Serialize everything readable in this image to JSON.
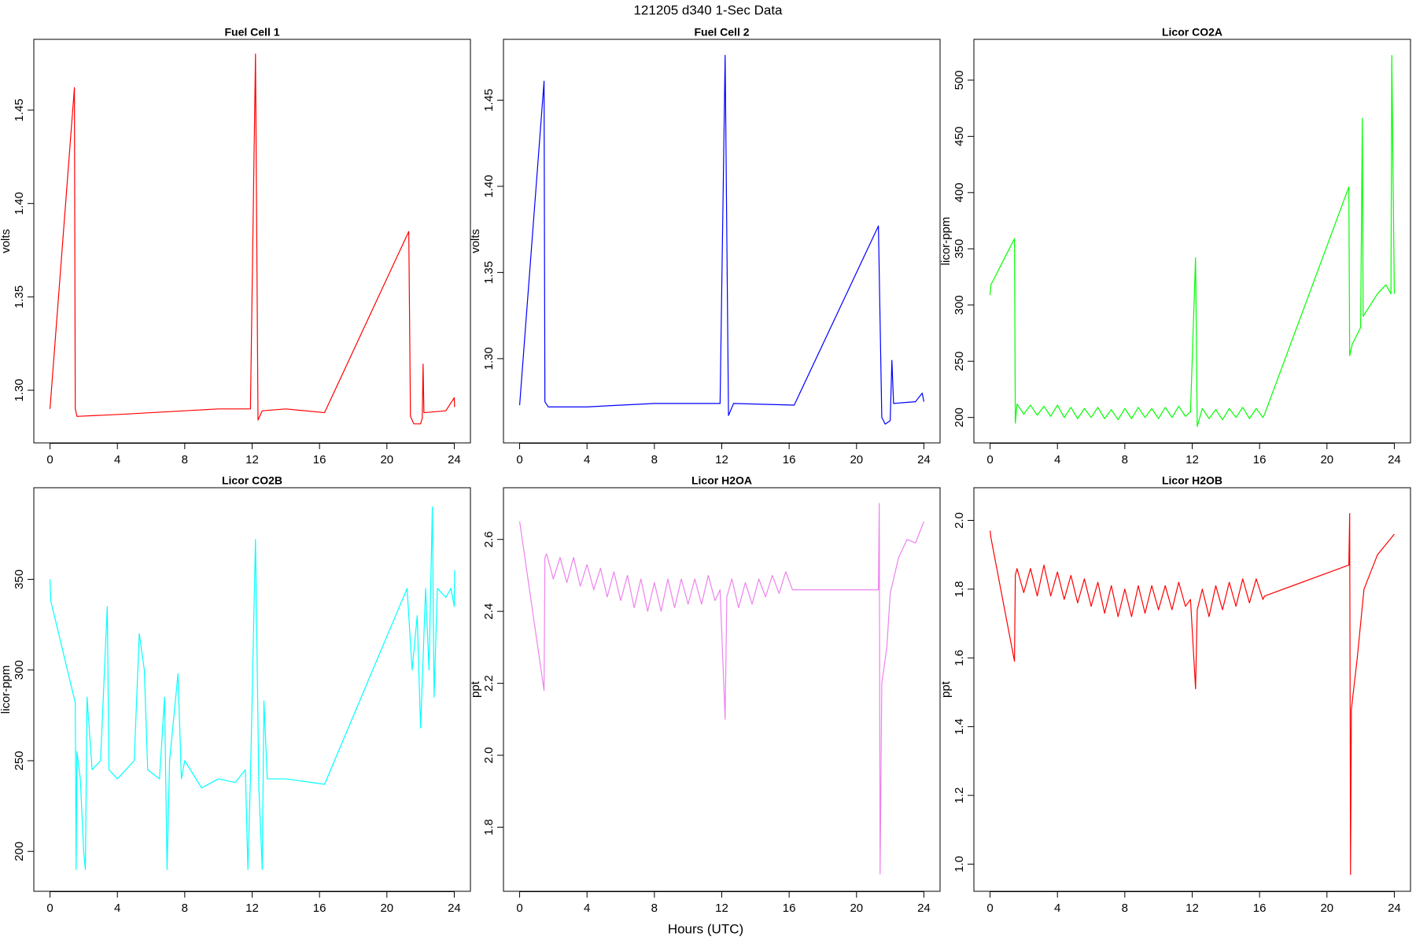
{
  "title": "121205   d340   1-Sec Data",
  "x_label": "Hours (UTC)",
  "chart_data": [
    {
      "type": "line",
      "title": "Fuel Cell 1",
      "ylabel": "volts",
      "color": "#ff0000",
      "x": [
        0,
        1.45,
        1.5,
        1.6,
        4,
        8,
        10,
        11.9,
        12.2,
        12.35,
        12.6,
        14,
        16.3,
        21.3,
        21.4,
        21.6,
        22,
        22.1,
        22.15,
        22.2,
        23.5,
        24,
        24.02
      ],
      "values": [
        1.29,
        1.462,
        1.29,
        1.286,
        1.287,
        1.289,
        1.29,
        1.29,
        1.48,
        1.284,
        1.289,
        1.29,
        1.288,
        1.385,
        1.286,
        1.282,
        1.282,
        1.285,
        1.314,
        1.288,
        1.289,
        1.296,
        1.291
      ],
      "xlim": [
        -0.96,
        24.96
      ],
      "xticks": [
        0,
        4,
        8,
        12,
        16,
        20,
        24
      ],
      "ylim": [
        1.2718,
        1.4879
      ],
      "yticks": [
        {
          "value": 1.3,
          "label": "1.30"
        },
        1.35,
        {
          "value": 1.4,
          "label": "1.40"
        },
        1.45
      ]
    },
    {
      "type": "line",
      "title": "Fuel Cell 2",
      "ylabel": "volts",
      "color": "#0000ff",
      "x": [
        0,
        1.45,
        1.5,
        1.7,
        4,
        8,
        11.9,
        12.2,
        12.4,
        12.7,
        16.3,
        21.3,
        21.5,
        21.7,
        22,
        22.1,
        22.2,
        23.5,
        23.9,
        24
      ],
      "values": [
        1.273,
        1.461,
        1.275,
        1.272,
        1.272,
        1.274,
        1.274,
        1.476,
        1.267,
        1.274,
        1.273,
        1.377,
        1.266,
        1.262,
        1.264,
        1.299,
        1.274,
        1.275,
        1.28,
        1.275
      ],
      "xlim": [
        -0.96,
        24.96
      ],
      "xticks": [
        0,
        4,
        8,
        12,
        16,
        20,
        24
      ],
      "ylim": [
        1.2511,
        1.4853
      ],
      "yticks": [
        {
          "value": 1.3,
          "label": "1.30"
        },
        1.35,
        {
          "value": 1.4,
          "label": "1.40"
        },
        1.45
      ]
    },
    {
      "type": "line",
      "title": "Licor CO2A",
      "ylabel": "licor-ppm",
      "color": "#00ff00",
      "x": [
        0,
        0.05,
        1.45,
        1.5,
        1.6,
        2.0,
        2.4,
        2.8,
        3.2,
        3.6,
        4.0,
        4.4,
        4.8,
        5.2,
        5.6,
        6.0,
        6.4,
        6.8,
        7.2,
        7.6,
        8.0,
        8.4,
        8.8,
        9.2,
        9.6,
        10.0,
        10.4,
        10.8,
        11.2,
        11.6,
        11.9,
        12.2,
        12.3,
        12.6,
        13.0,
        13.4,
        13.8,
        14.2,
        14.6,
        15.0,
        15.4,
        15.8,
        16.2,
        16.3,
        21.3,
        21.35,
        21.5,
        22,
        22.1,
        22.15,
        23,
        23.5,
        23.8,
        23.85,
        24
      ],
      "values": [
        309,
        318,
        359,
        195,
        212,
        203,
        211,
        202,
        210,
        201,
        211,
        200,
        209,
        199,
        208,
        200,
        209,
        199,
        207,
        198,
        208,
        199,
        209,
        200,
        208,
        199,
        209,
        200,
        210,
        201,
        205,
        342,
        192,
        208,
        199,
        207,
        198,
        208,
        200,
        209,
        199,
        208,
        200,
        203,
        405,
        255,
        265,
        280,
        466,
        290,
        310,
        318,
        310,
        522,
        310
      ],
      "xlim": [
        -0.96,
        24.96
      ],
      "xticks": [
        0,
        4,
        8,
        12,
        16,
        20,
        24
      ],
      "ylim": [
        177.4,
        536.3
      ],
      "yticks": [
        200,
        250,
        300,
        350,
        400,
        450,
        500
      ]
    },
    {
      "type": "line",
      "title": "Licor CO2B",
      "ylabel": "licor-ppm",
      "color": "#00ffff",
      "x": [
        0,
        0.05,
        1.5,
        1.55,
        1.6,
        1.8,
        2,
        2.1,
        2.2,
        2.5,
        3,
        3.4,
        3.5,
        4,
        5,
        5.3,
        5.6,
        5.8,
        6.5,
        6.8,
        6.95,
        7.1,
        7.6,
        7.8,
        8,
        9,
        10,
        11,
        11.6,
        11.75,
        11.9,
        12.2,
        12.4,
        12.6,
        12.7,
        12.9,
        14,
        16.3,
        21.2,
        21.5,
        21.8,
        22,
        22.3,
        22.5,
        22.7,
        22.8,
        23,
        23.5,
        23.8,
        24,
        24.02
      ],
      "values": [
        350,
        338,
        282,
        190,
        255,
        240,
        200,
        190,
        285,
        245,
        250,
        335,
        245,
        240,
        250,
        320,
        300,
        245,
        240,
        285,
        190,
        250,
        298,
        240,
        250,
        235,
        240,
        238,
        245,
        190,
        240,
        372,
        235,
        190,
        283,
        240,
        240,
        237,
        345,
        300,
        330,
        268,
        345,
        300,
        390,
        285,
        345,
        340,
        345,
        335,
        355
      ],
      "xlim": [
        -0.96,
        24.96
      ],
      "xticks": [
        0,
        4,
        8,
        12,
        16,
        20,
        24
      ],
      "ylim": [
        178,
        400.5
      ],
      "yticks": [
        200,
        250,
        300,
        350
      ]
    },
    {
      "type": "line",
      "title": "Licor H2OA",
      "ylabel": "ppt",
      "color": "#ee82ee",
      "x": [
        0,
        1.45,
        1.5,
        1.6,
        2.0,
        2.4,
        2.8,
        3.2,
        3.6,
        4.0,
        4.4,
        4.8,
        5.2,
        5.6,
        6.0,
        6.4,
        6.8,
        7.2,
        7.6,
        8.0,
        8.4,
        8.8,
        9.2,
        9.6,
        10.0,
        10.4,
        10.8,
        11.2,
        11.6,
        11.9,
        12.2,
        12.3,
        12.6,
        13.0,
        13.4,
        13.8,
        14.2,
        14.6,
        15.0,
        15.4,
        15.8,
        16.2,
        16.5,
        21.3,
        21.35,
        21.4,
        21.5,
        21.8,
        22,
        22.5,
        23,
        23.5,
        24
      ],
      "values": [
        2.65,
        2.18,
        2.55,
        2.56,
        2.49,
        2.55,
        2.48,
        2.55,
        2.47,
        2.53,
        2.46,
        2.52,
        2.44,
        2.51,
        2.43,
        2.5,
        2.41,
        2.49,
        2.4,
        2.48,
        2.4,
        2.49,
        2.41,
        2.49,
        2.42,
        2.49,
        2.42,
        2.5,
        2.43,
        2.46,
        2.1,
        2.44,
        2.49,
        2.41,
        2.48,
        2.42,
        2.49,
        2.44,
        2.5,
        2.45,
        2.51,
        2.46,
        2.46,
        2.46,
        2.7,
        1.67,
        2.2,
        2.3,
        2.45,
        2.55,
        2.6,
        2.59,
        2.65
      ],
      "xlim": [
        -0.96,
        24.96
      ],
      "xticks": [
        0,
        4,
        8,
        12,
        16,
        20,
        24
      ],
      "ylim": [
        1.6218,
        2.7437
      ],
      "yticks": [
        1.8,
        {
          "value": 2.0,
          "label": "2.0"
        },
        2.2,
        2.4,
        2.6
      ]
    },
    {
      "type": "line",
      "title": "Licor H2OB",
      "ylabel": "ppt",
      "color": "#ff0000",
      "x": [
        0,
        0.05,
        1.45,
        1.5,
        1.6,
        2.0,
        2.4,
        2.8,
        3.2,
        3.6,
        4.0,
        4.4,
        4.8,
        5.2,
        5.6,
        6.0,
        6.4,
        6.8,
        7.2,
        7.6,
        8.0,
        8.4,
        8.8,
        9.2,
        9.6,
        10.0,
        10.4,
        10.8,
        11.2,
        11.6,
        11.9,
        12.2,
        12.3,
        12.6,
        13.0,
        13.4,
        13.8,
        14.2,
        14.6,
        15.0,
        15.4,
        15.8,
        16.2,
        16.3,
        21.3,
        21.35,
        21.4,
        21.45,
        21.8,
        22.2,
        23,
        23.5,
        24
      ],
      "values": [
        1.97,
        1.95,
        1.59,
        1.84,
        1.86,
        1.79,
        1.86,
        1.78,
        1.87,
        1.78,
        1.85,
        1.77,
        1.84,
        1.76,
        1.83,
        1.75,
        1.82,
        1.73,
        1.81,
        1.72,
        1.8,
        1.72,
        1.81,
        1.73,
        1.81,
        1.74,
        1.81,
        1.74,
        1.82,
        1.75,
        1.77,
        1.51,
        1.74,
        1.8,
        1.72,
        1.81,
        1.74,
        1.82,
        1.75,
        1.83,
        1.76,
        1.83,
        1.77,
        1.78,
        1.87,
        2.02,
        0.97,
        1.45,
        1.6,
        1.8,
        1.9,
        1.93,
        1.96
      ],
      "xlim": [
        -0.96,
        24.96
      ],
      "xticks": [
        0,
        4,
        8,
        12,
        16,
        20,
        24
      ],
      "ylim": [
        0.921,
        2.095
      ],
      "yticks": [
        {
          "value": 1.0,
          "label": "1.0"
        },
        1.2,
        1.4,
        1.6,
        1.8,
        {
          "value": 2.0,
          "label": "2.0"
        }
      ]
    }
  ]
}
